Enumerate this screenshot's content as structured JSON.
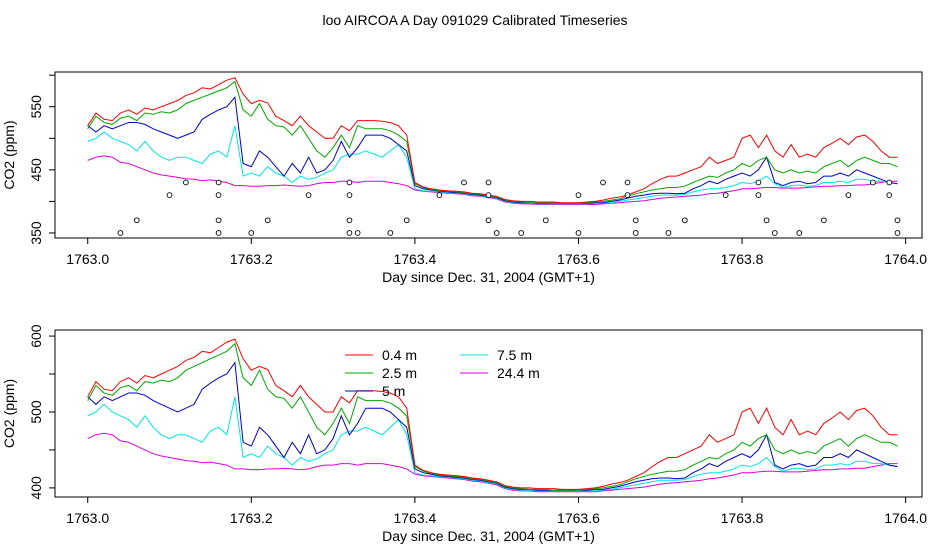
{
  "figure": {
    "title": "loo AIRCOA A  Day 091029  Calibrated Timeseries"
  },
  "chart_data": [
    {
      "type": "line",
      "xlabel": "Day since Dec. 31, 2004 (GMT+1)",
      "ylabel": "CO2 (ppm)",
      "xlim": [
        1762.96,
        1764.02
      ],
      "ylim": [
        342,
        605
      ],
      "x_ticks": [
        "1763.0",
        "1763.2",
        "1763.4",
        "1763.6",
        "1763.8",
        "1764.0"
      ],
      "y_ticks": [
        "350",
        "450",
        "550"
      ],
      "x_tick_values": [
        1763.0,
        1763.2,
        1763.4,
        1763.6,
        1763.8,
        1764.0
      ],
      "y_tick_values": [
        350,
        450,
        550
      ],
      "series_colors": [
        "#ff0000",
        "#00aa00",
        "#0000cc",
        "#00e5e5",
        "#dd00dd"
      ],
      "x": [
        1763.0,
        1763.01,
        1763.02,
        1763.03,
        1763.04,
        1763.05,
        1763.06,
        1763.07,
        1763.08,
        1763.09,
        1763.1,
        1763.11,
        1763.12,
        1763.13,
        1763.14,
        1763.15,
        1763.16,
        1763.17,
        1763.18,
        1763.19,
        1763.2,
        1763.21,
        1763.22,
        1763.23,
        1763.24,
        1763.25,
        1763.26,
        1763.27,
        1763.28,
        1763.29,
        1763.3,
        1763.31,
        1763.32,
        1763.33,
        1763.34,
        1763.35,
        1763.36,
        1763.37,
        1763.38,
        1763.39,
        1763.4,
        1763.41,
        1763.42,
        1763.43,
        1763.44,
        1763.45,
        1763.46,
        1763.47,
        1763.48,
        1763.49,
        1763.5,
        1763.51,
        1763.52,
        1763.53,
        1763.54,
        1763.55,
        1763.56,
        1763.57,
        1763.58,
        1763.59,
        1763.6,
        1763.61,
        1763.62,
        1763.63,
        1763.64,
        1763.65,
        1763.66,
        1763.67,
        1763.68,
        1763.69,
        1763.7,
        1763.71,
        1763.72,
        1763.73,
        1763.74,
        1763.75,
        1763.76,
        1763.77,
        1763.78,
        1763.79,
        1763.8,
        1763.81,
        1763.82,
        1763.83,
        1763.84,
        1763.85,
        1763.86,
        1763.87,
        1763.88,
        1763.89,
        1763.9,
        1763.91,
        1763.92,
        1763.93,
        1763.94,
        1763.95,
        1763.96,
        1763.97,
        1763.98,
        1763.99
      ],
      "series": [
        {
          "values": [
            520,
            540,
            530,
            528,
            540,
            545,
            538,
            548,
            545,
            550,
            555,
            560,
            568,
            572,
            580,
            578,
            585,
            592,
            596,
            570,
            555,
            560,
            556,
            535,
            528,
            520,
            535,
            520,
            510,
            500,
            500,
            520,
            512,
            528,
            528,
            528,
            527,
            525,
            520,
            505,
            430,
            423,
            420,
            418,
            417,
            416,
            415,
            413,
            412,
            410,
            408,
            403,
            401,
            400,
            400,
            399,
            399,
            399,
            398,
            398,
            398,
            399,
            400,
            402,
            405,
            407,
            410,
            415,
            420,
            428,
            435,
            440,
            440,
            445,
            450,
            455,
            470,
            460,
            465,
            470,
            500,
            505,
            485,
            505,
            480,
            470,
            490,
            470,
            475,
            470,
            485,
            492,
            500,
            490,
            502,
            505,
            495,
            480,
            470,
            470
          ]
        },
        {
          "values": [
            515,
            535,
            525,
            522,
            532,
            535,
            528,
            540,
            538,
            542,
            540,
            545,
            555,
            560,
            565,
            570,
            575,
            580,
            590,
            545,
            535,
            555,
            530,
            520,
            518,
            505,
            520,
            500,
            480,
            470,
            485,
            505,
            485,
            520,
            515,
            515,
            515,
            512,
            505,
            495,
            428,
            422,
            419,
            417,
            416,
            415,
            414,
            412,
            411,
            409,
            407,
            402,
            400,
            399,
            398,
            398,
            398,
            397,
            397,
            397,
            397,
            398,
            399,
            400,
            402,
            404,
            408,
            412,
            415,
            418,
            420,
            422,
            422,
            424,
            430,
            435,
            440,
            438,
            445,
            450,
            460,
            455,
            465,
            470,
            450,
            445,
            450,
            445,
            448,
            445,
            455,
            460,
            465,
            455,
            465,
            470,
            465,
            460,
            460,
            455
          ]
        },
        {
          "values": [
            520,
            510,
            520,
            515,
            520,
            525,
            525,
            522,
            515,
            510,
            505,
            500,
            505,
            510,
            530,
            538,
            545,
            550,
            565,
            460,
            455,
            480,
            470,
            455,
            440,
            460,
            445,
            470,
            445,
            450,
            465,
            495,
            470,
            485,
            505,
            505,
            505,
            500,
            490,
            480,
            425,
            420,
            418,
            416,
            415,
            414,
            413,
            411,
            410,
            408,
            406,
            401,
            399,
            398,
            398,
            397,
            397,
            397,
            397,
            397,
            397,
            397,
            398,
            398,
            400,
            402,
            405,
            408,
            410,
            412,
            413,
            413,
            412,
            413,
            420,
            425,
            432,
            428,
            435,
            440,
            445,
            440,
            450,
            470,
            430,
            425,
            430,
            432,
            428,
            430,
            440,
            440,
            445,
            440,
            450,
            445,
            440,
            435,
            430,
            428
          ]
        },
        {
          "values": [
            495,
            500,
            510,
            500,
            495,
            490,
            480,
            495,
            480,
            470,
            465,
            470,
            470,
            465,
            460,
            475,
            480,
            470,
            520,
            440,
            445,
            440,
            455,
            445,
            440,
            430,
            440,
            435,
            438,
            445,
            450,
            470,
            475,
            475,
            480,
            475,
            470,
            480,
            490,
            470,
            420,
            417,
            416,
            415,
            414,
            413,
            412,
            410,
            409,
            407,
            405,
            400,
            398,
            397,
            397,
            396,
            396,
            396,
            396,
            396,
            396,
            396,
            397,
            397,
            398,
            400,
            402,
            404,
            406,
            408,
            410,
            410,
            410,
            411,
            415,
            418,
            420,
            420,
            422,
            425,
            430,
            428,
            432,
            440,
            428,
            422,
            425,
            426,
            424,
            425,
            430,
            430,
            432,
            430,
            435,
            435,
            432,
            432,
            430,
            428
          ]
        },
        {
          "values": [
            465,
            470,
            472,
            470,
            462,
            460,
            455,
            450,
            445,
            442,
            440,
            438,
            436,
            435,
            433,
            434,
            432,
            430,
            425,
            425,
            424,
            424,
            425,
            425,
            426,
            425,
            424,
            425,
            428,
            430,
            430,
            432,
            432,
            430,
            432,
            432,
            432,
            430,
            428,
            425,
            418,
            416,
            415,
            414,
            413,
            412,
            411,
            409,
            408,
            406,
            404,
            399,
            397,
            396,
            396,
            395,
            395,
            395,
            395,
            395,
            395,
            395,
            395,
            396,
            397,
            398,
            399,
            400,
            401,
            403,
            405,
            406,
            407,
            408,
            409,
            410,
            412,
            413,
            415,
            417,
            420,
            420,
            421,
            422,
            422,
            421,
            421,
            421,
            422,
            423,
            424,
            424,
            425,
            425,
            426,
            426,
            428,
            430,
            432,
            432
          ]
        }
      ],
      "flag_points": {
        "x": [
          1763.04,
          1763.06,
          1763.1,
          1763.12,
          1763.16,
          1763.16,
          1763.16,
          1763.16,
          1763.2,
          1763.22,
          1763.27,
          1763.32,
          1763.32,
          1763.32,
          1763.32,
          1763.33,
          1763.37,
          1763.39,
          1763.43,
          1763.46,
          1763.49,
          1763.49,
          1763.49,
          1763.5,
          1763.53,
          1763.56,
          1763.6,
          1763.6,
          1763.63,
          1763.66,
          1763.66,
          1763.67,
          1763.67,
          1763.71,
          1763.73,
          1763.78,
          1763.82,
          1763.82,
          1763.83,
          1763.84,
          1763.87,
          1763.9,
          1763.93,
          1763.96,
          1763.98,
          1763.98,
          1763.99,
          1763.99
        ],
        "values": [
          350,
          370,
          410,
          430,
          430,
          410,
          370,
          350,
          350,
          370,
          410,
          430,
          410,
          370,
          350,
          350,
          350,
          370,
          410,
          430,
          430,
          410,
          370,
          350,
          350,
          370,
          410,
          350,
          430,
          430,
          410,
          370,
          350,
          350,
          370,
          410,
          430,
          410,
          370,
          350,
          350,
          370,
          410,
          430,
          430,
          410,
          370,
          350
        ]
      }
    },
    {
      "type": "line",
      "xlabel": "Day since Dec. 31, 2004 (GMT+1)",
      "ylabel": "CO2 (ppm)",
      "xlim": [
        1762.96,
        1764.02
      ],
      "ylim": [
        388,
        608
      ],
      "x_ticks": [
        "1763.0",
        "1763.2",
        "1763.4",
        "1763.6",
        "1763.8",
        "1764.0"
      ],
      "y_ticks": [
        "400",
        "500",
        "600"
      ],
      "x_tick_values": [
        1763.0,
        1763.2,
        1763.4,
        1763.6,
        1763.8,
        1764.0
      ],
      "y_tick_values": [
        400,
        500,
        600
      ],
      "legend_position": "top-center",
      "legend": [
        "0.4 m",
        "2.5 m",
        "5 m",
        "7.5 m",
        "24.4 m"
      ],
      "series_colors": [
        "#ff0000",
        "#00aa00",
        "#0000cc",
        "#00e5e5",
        "#dd00dd"
      ]
    }
  ]
}
